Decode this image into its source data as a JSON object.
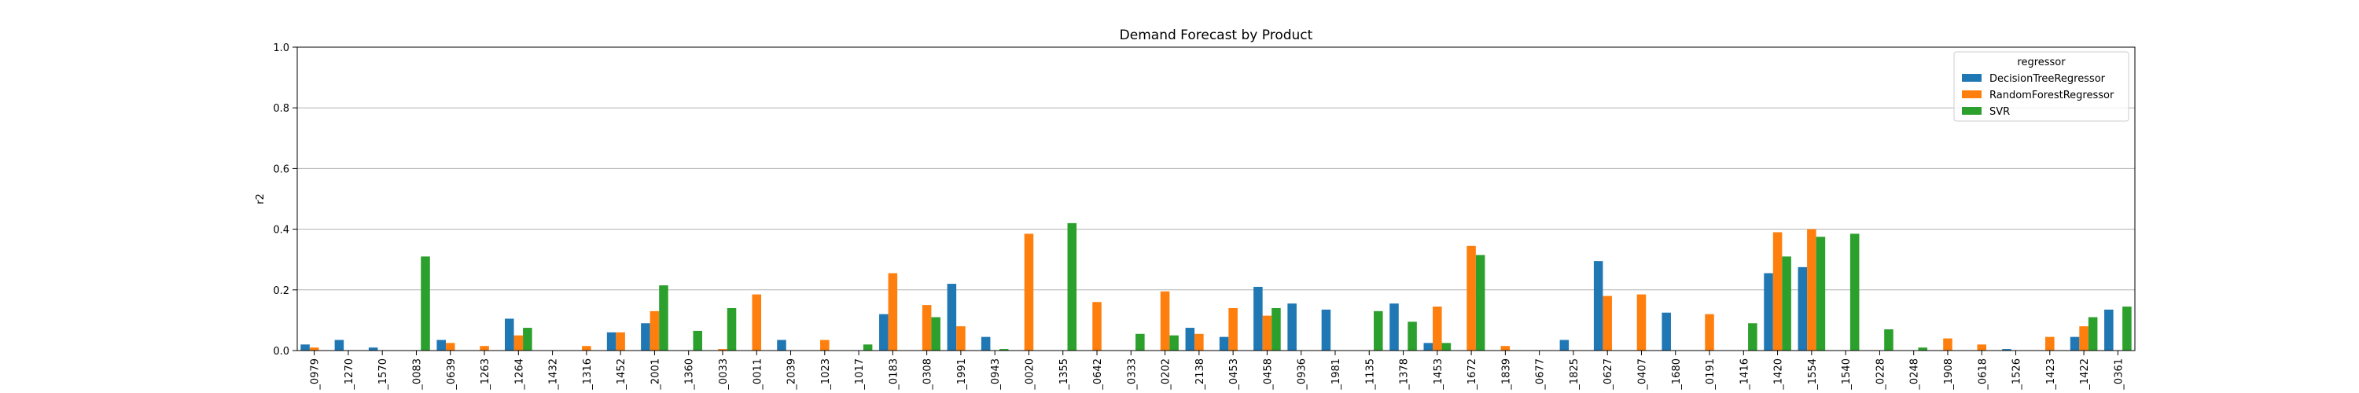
{
  "chart_data": {
    "type": "bar",
    "title": "Demand Forecast by Product",
    "xlabel": "",
    "ylabel": "r2",
    "ylim": [
      0.0,
      1.0
    ],
    "yticks": [
      "0.0",
      "0.2",
      "0.4",
      "0.6",
      "0.8",
      "1.0"
    ],
    "grid": "horizontal",
    "legend": {
      "title": "regressor",
      "position": "top-right"
    },
    "categories": [
      "_0979",
      "_1270",
      "_1570",
      "_0083",
      "_0639",
      "_1263",
      "_1264",
      "_1432",
      "_1316",
      "_1452",
      "_2001",
      "_1360",
      "_0033",
      "_0011",
      "_2039",
      "_1023",
      "_1017",
      "_0183",
      "_0308",
      "_1991",
      "_0943",
      "_0020",
      "_1355",
      "_0642",
      "_0333",
      "_0202",
      "_2138",
      "_0453",
      "_0458",
      "_0936",
      "_1981",
      "_1135",
      "_1378",
      "_1453",
      "_1672",
      "_1839",
      "_0677",
      "_1825",
      "_0627",
      "_0407",
      "_1680",
      "_0191",
      "_1416",
      "_1420",
      "_1554",
      "_1540",
      "_0228",
      "_0248",
      "_1908",
      "_0618",
      "_1526",
      "_1423",
      "_1422",
      "_0361"
    ],
    "series": [
      {
        "name": "DecisionTreeRegressor",
        "color": "#1f77b4",
        "values": [
          0.02,
          0.035,
          0.01,
          0,
          0.035,
          0,
          0.105,
          0,
          0,
          0.06,
          0.09,
          0,
          0,
          0,
          0.035,
          0,
          0,
          0.12,
          0,
          0.22,
          0.045,
          0,
          0,
          0,
          0,
          0,
          0.075,
          0.045,
          0.21,
          0.155,
          0.135,
          0,
          0.155,
          0.025,
          0,
          0,
          0,
          0.035,
          0.295,
          0,
          0.125,
          0,
          0,
          0.255,
          0.275,
          0,
          0,
          0,
          0,
          0,
          0.005,
          0,
          0.045,
          0.135
        ]
      },
      {
        "name": "RandomForestRegressor",
        "color": "#ff7f0e",
        "values": [
          0.01,
          0,
          0,
          0,
          0.025,
          0.015,
          0.05,
          0,
          0.015,
          0.06,
          0.13,
          0,
          0.005,
          0.185,
          0,
          0.035,
          0,
          0.255,
          0.15,
          0.08,
          0,
          0.385,
          0,
          0.16,
          0,
          0.195,
          0.055,
          0.14,
          0.115,
          0,
          0,
          0,
          0,
          0.145,
          0.345,
          0.015,
          0,
          0,
          0.18,
          0.185,
          0,
          0.12,
          0,
          0.39,
          0.4,
          0,
          0,
          0,
          0.04,
          0.02,
          0,
          0.045,
          0.08,
          0
        ]
      },
      {
        "name": "SVR",
        "color": "#2ca02c",
        "values": [
          0,
          0,
          0,
          0.31,
          0,
          0,
          0.075,
          0,
          0,
          0,
          0.215,
          0.065,
          0.14,
          0,
          0,
          0,
          0.02,
          0,
          0.11,
          0,
          0.005,
          0,
          0.42,
          0,
          0.055,
          0.05,
          0,
          0,
          0.14,
          0,
          0,
          0.13,
          0.095,
          0.025,
          0.315,
          0,
          0,
          0,
          0,
          0,
          0,
          0,
          0.09,
          0.31,
          0.375,
          0.385,
          0.07,
          0.01,
          0,
          0,
          0,
          0,
          0.11,
          0.145
        ]
      }
    ]
  }
}
